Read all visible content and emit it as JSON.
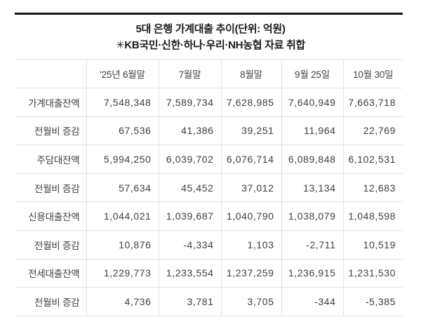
{
  "colors": {
    "background": "#ffffff",
    "top_rule": "#151515",
    "title_text": "#1b1b1b",
    "table_text": "#3e3e3e",
    "table_border": "#e2e2e2"
  },
  "chart_data": {
    "type": "table",
    "title": "5대 은행 가계대출 추이(단위: 억원)",
    "note": "✳KB국민·신한·하나·우리·NH농협 자료 취합",
    "unit": "억원",
    "columns": [
      "'25년 6월말",
      "7월말",
      "8월말",
      "9월 25일",
      "10월 30일"
    ],
    "rows": [
      {
        "label": "가계대출잔액",
        "values": [
          "7,548,348",
          "7,589,734",
          "7,628,985",
          "7,640,949",
          "7,663,718"
        ]
      },
      {
        "label": "전월비 증감",
        "values": [
          "67,536",
          "41,386",
          "39,251",
          "11,964",
          "22,769"
        ]
      },
      {
        "label": "주담대잔액",
        "values": [
          "5,994,250",
          "6,039,702",
          "6,076,714",
          "6,089,848",
          "6,102,531"
        ]
      },
      {
        "label": "전월비 증감",
        "values": [
          "57,634",
          "45,452",
          "37,012",
          "13,134",
          "12,683"
        ]
      },
      {
        "label": "신용대출잔액",
        "values": [
          "1,044,021",
          "1,039,687",
          "1,040,790",
          "1,038,079",
          "1,048,598"
        ]
      },
      {
        "label": "전월비 증감",
        "values": [
          "10,876",
          "-4,334",
          "1,103",
          "-2,711",
          "10,519"
        ]
      },
      {
        "label": "전세대출잔액",
        "values": [
          "1,229,773",
          "1,233,554",
          "1,237,259",
          "1,236,915",
          "1,231,530"
        ]
      },
      {
        "label": "전월비 증감",
        "values": [
          "4,736",
          "3,781",
          "3,705",
          "-344",
          "-5,385"
        ]
      }
    ]
  }
}
